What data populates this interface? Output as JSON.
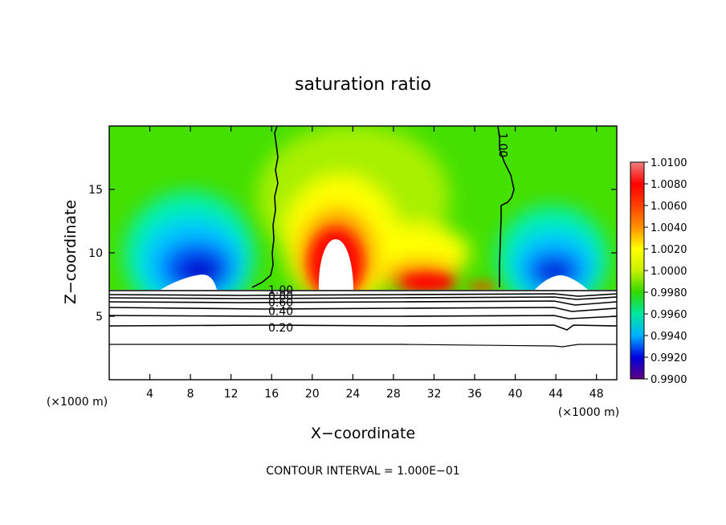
{
  "chart_data": {
    "type": "contour",
    "title": "saturation ratio",
    "xlabel": "X−coordinate",
    "ylabel": "Z−coordinate",
    "x_unit_left": "(×1000 m)",
    "x_unit_right": "(×1000 m)",
    "xlim": [
      0,
      50
    ],
    "ylim": [
      0,
      20
    ],
    "x_ticks": [
      4,
      8,
      12,
      16,
      20,
      24,
      28,
      32,
      36,
      40,
      44,
      48
    ],
    "y_ticks": [
      5,
      10,
      15
    ],
    "footer": "CONTOUR INTERVAL = 1.000E−01",
    "colorbar": {
      "labels": [
        "1.0100",
        "1.0080",
        "1.0060",
        "1.0040",
        "1.0020",
        "1.0000",
        "0.9980",
        "0.9960",
        "0.9940",
        "0.9920",
        "0.9900"
      ],
      "colors": [
        "#f08080",
        "#ff0000",
        "#ff4000",
        "#ff9000",
        "#ffff00",
        "#c8f000",
        "#30d800",
        "#00e8a0",
        "#00b0ff",
        "#0000e0",
        "#600080"
      ]
    },
    "contour_labels": [
      {
        "text": "1.00",
        "x": 38.8,
        "y": 18.5,
        "rotate": 90
      },
      {
        "text": "1.00",
        "x": 16.9,
        "y": 7.1
      },
      {
        "text": "0.80",
        "x": 16.9,
        "y": 6.6
      },
      {
        "text": "0.60",
        "x": 16.9,
        "y": 6.1
      },
      {
        "text": "0.40",
        "x": 16.9,
        "y": 5.4
      },
      {
        "text": "0.20",
        "x": 16.9,
        "y": 4.1
      }
    ]
  }
}
